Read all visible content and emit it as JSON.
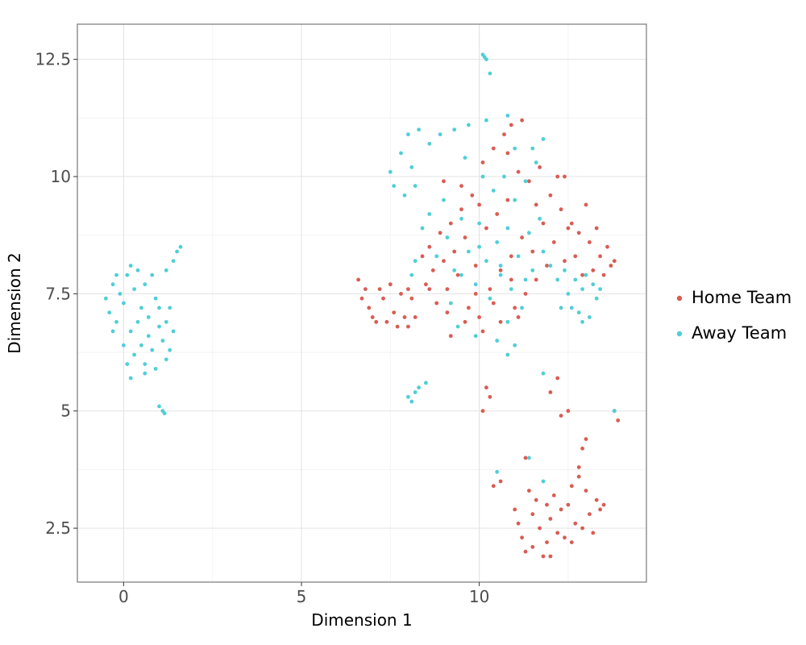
{
  "chart_data": {
    "type": "scatter",
    "xlabel": "Dimension 1",
    "ylabel": "Dimension 2",
    "xlim": [
      -1.3,
      14.7
    ],
    "ylim": [
      1.35,
      13.25
    ],
    "x_ticks": [
      0,
      5,
      10
    ],
    "x_tick_labels": [
      "0",
      "5",
      "10"
    ],
    "y_ticks": [
      2.5,
      5,
      7.5,
      10,
      12.5
    ],
    "y_tick_labels": [
      "2.5",
      "5",
      "7.5",
      "10",
      "12.5"
    ],
    "grid": true,
    "legend_position": "right",
    "series": [
      {
        "name": "Home Team",
        "color": "#d95c53",
        "points": [
          [
            6.6,
            7.8
          ],
          [
            6.8,
            7.6
          ],
          [
            6.9,
            7.2
          ],
          [
            7.0,
            7.0
          ],
          [
            7.1,
            6.9
          ],
          [
            7.3,
            7.4
          ],
          [
            7.5,
            7.7
          ],
          [
            7.6,
            7.1
          ],
          [
            7.7,
            6.8
          ],
          [
            7.9,
            7.0
          ],
          [
            8.0,
            6.8
          ],
          [
            8.1,
            7.4
          ],
          [
            8.2,
            7.0
          ],
          [
            6.7,
            7.4
          ],
          [
            7.2,
            7.6
          ],
          [
            7.8,
            7.5
          ],
          [
            7.4,
            6.9
          ],
          [
            8.0,
            7.6
          ],
          [
            8.4,
            8.3
          ],
          [
            8.5,
            7.7
          ],
          [
            8.6,
            8.5
          ],
          [
            8.7,
            8.0
          ],
          [
            8.8,
            7.3
          ],
          [
            8.9,
            8.8
          ],
          [
            9.0,
            8.2
          ],
          [
            9.1,
            7.6
          ],
          [
            9.2,
            9.0
          ],
          [
            9.3,
            8.4
          ],
          [
            9.4,
            7.9
          ],
          [
            9.5,
            9.3
          ],
          [
            9.6,
            8.7
          ],
          [
            9.7,
            7.2
          ],
          [
            9.8,
            9.6
          ],
          [
            9.9,
            8.1
          ],
          [
            10.0,
            7.0
          ],
          [
            10.1,
            10.3
          ],
          [
            10.2,
            8.9
          ],
          [
            10.3,
            7.6
          ],
          [
            10.4,
            10.6
          ],
          [
            10.5,
            9.2
          ],
          [
            10.6,
            8.0
          ],
          [
            10.7,
            10.9
          ],
          [
            10.8,
            9.5
          ],
          [
            10.9,
            8.3
          ],
          [
            11.0,
            7.2
          ],
          [
            11.1,
            10.1
          ],
          [
            11.2,
            8.7
          ],
          [
            11.3,
            7.5
          ],
          [
            11.4,
            9.9
          ],
          [
            11.5,
            8.4
          ],
          [
            11.6,
            7.8
          ],
          [
            11.7,
            10.2
          ],
          [
            11.8,
            9.0
          ],
          [
            11.9,
            8.1
          ],
          [
            12.0,
            9.6
          ],
          [
            12.1,
            8.6
          ],
          [
            12.2,
            10.0
          ],
          [
            12.3,
            9.3
          ],
          [
            12.4,
            8.2
          ],
          [
            12.5,
            8.9
          ],
          [
            12.6,
            9.0
          ],
          [
            12.7,
            8.3
          ],
          [
            12.8,
            8.8
          ],
          [
            12.9,
            7.9
          ],
          [
            13.0,
            9.4
          ],
          [
            13.1,
            8.6
          ],
          [
            13.2,
            8.0
          ],
          [
            13.3,
            8.9
          ],
          [
            13.4,
            8.3
          ],
          [
            13.5,
            7.9
          ],
          [
            13.6,
            8.5
          ],
          [
            13.7,
            8.1
          ],
          [
            13.8,
            8.2
          ],
          [
            9.2,
            6.6
          ],
          [
            9.6,
            6.9
          ],
          [
            10.1,
            6.7
          ],
          [
            10.6,
            6.9
          ],
          [
            11.1,
            7.0
          ],
          [
            10.9,
            11.1
          ],
          [
            11.2,
            11.2
          ],
          [
            9.0,
            9.9
          ],
          [
            9.5,
            9.8
          ],
          [
            10.0,
            9.4
          ],
          [
            10.8,
            10.5
          ],
          [
            11.6,
            9.4
          ],
          [
            12.4,
            10.0
          ],
          [
            9.9,
            7.5
          ],
          [
            10.4,
            7.3
          ],
          [
            10.9,
            7.8
          ],
          [
            8.6,
            7.6
          ],
          [
            9.1,
            7.1
          ],
          [
            10.2,
            5.5
          ],
          [
            10.1,
            5.0
          ],
          [
            10.3,
            5.3
          ],
          [
            12.2,
            5.7
          ],
          [
            12.3,
            4.9
          ],
          [
            12.5,
            5.0
          ],
          [
            12.0,
            5.4
          ],
          [
            13.8,
            5.0
          ],
          [
            13.9,
            4.8
          ],
          [
            11.3,
            4.0
          ],
          [
            10.4,
            3.4
          ],
          [
            10.6,
            3.5
          ],
          [
            11.0,
            2.9
          ],
          [
            11.1,
            2.6
          ],
          [
            11.2,
            2.3
          ],
          [
            11.3,
            2.0
          ],
          [
            11.5,
            2.8
          ],
          [
            11.6,
            3.1
          ],
          [
            11.7,
            2.5
          ],
          [
            11.8,
            1.9
          ],
          [
            11.9,
            2.2
          ],
          [
            12.0,
            2.7
          ],
          [
            12.1,
            3.2
          ],
          [
            12.2,
            2.4
          ],
          [
            12.3,
            2.9
          ],
          [
            12.4,
            2.3
          ],
          [
            12.5,
            3.0
          ],
          [
            12.6,
            3.4
          ],
          [
            12.7,
            2.6
          ],
          [
            12.8,
            3.8
          ],
          [
            12.9,
            2.5
          ],
          [
            13.0,
            3.3
          ],
          [
            13.1,
            2.8
          ],
          [
            13.2,
            2.4
          ],
          [
            13.3,
            3.1
          ],
          [
            13.4,
            2.9
          ],
          [
            12.9,
            4.2
          ],
          [
            13.0,
            4.4
          ],
          [
            11.4,
            3.3
          ],
          [
            11.9,
            3.0
          ],
          [
            12.6,
            2.2
          ],
          [
            12.8,
            3.6
          ],
          [
            13.5,
            3.0
          ],
          [
            11.5,
            2.1
          ],
          [
            12.0,
            1.9
          ]
        ]
      },
      {
        "name": "Away Team",
        "color": "#4fcfd6",
        "points": [
          [
            -0.5,
            7.4
          ],
          [
            -0.4,
            7.1
          ],
          [
            -0.3,
            7.7
          ],
          [
            -0.2,
            6.9
          ],
          [
            -0.1,
            7.5
          ],
          [
            0.0,
            7.3
          ],
          [
            0.0,
            6.4
          ],
          [
            0.1,
            7.9
          ],
          [
            0.1,
            6.0
          ],
          [
            0.2,
            6.7
          ],
          [
            0.2,
            5.7
          ],
          [
            0.3,
            7.6
          ],
          [
            0.3,
            6.2
          ],
          [
            0.4,
            8.0
          ],
          [
            0.4,
            6.9
          ],
          [
            0.5,
            7.2
          ],
          [
            0.5,
            6.4
          ],
          [
            0.6,
            7.7
          ],
          [
            0.6,
            6.0
          ],
          [
            0.7,
            7.0
          ],
          [
            0.7,
            6.6
          ],
          [
            0.8,
            7.9
          ],
          [
            0.8,
            6.3
          ],
          [
            0.9,
            7.4
          ],
          [
            0.9,
            5.9
          ],
          [
            1.0,
            6.8
          ],
          [
            1.0,
            7.2
          ],
          [
            1.1,
            6.5
          ],
          [
            1.2,
            6.9
          ],
          [
            1.3,
            6.3
          ],
          [
            1.4,
            6.7
          ],
          [
            1.3,
            7.2
          ],
          [
            1.2,
            8.0
          ],
          [
            1.4,
            8.2
          ],
          [
            1.5,
            8.4
          ],
          [
            1.6,
            8.5
          ],
          [
            1.0,
            5.1
          ],
          [
            1.1,
            5.0
          ],
          [
            1.15,
            4.95
          ],
          [
            -0.2,
            7.9
          ],
          [
            0.2,
            8.1
          ],
          [
            -0.3,
            6.7
          ],
          [
            0.6,
            5.8
          ],
          [
            1.2,
            6.1
          ],
          [
            8.0,
            5.3
          ],
          [
            8.1,
            5.2
          ],
          [
            8.2,
            5.4
          ],
          [
            8.5,
            5.6
          ],
          [
            8.3,
            5.5
          ],
          [
            10.1,
            12.6
          ],
          [
            10.15,
            12.55
          ],
          [
            10.2,
            12.5
          ],
          [
            10.3,
            12.2
          ],
          [
            7.5,
            10.1
          ],
          [
            7.6,
            9.8
          ],
          [
            7.8,
            10.5
          ],
          [
            7.9,
            9.6
          ],
          [
            8.0,
            10.9
          ],
          [
            8.1,
            10.2
          ],
          [
            8.3,
            11.0
          ],
          [
            8.2,
            9.8
          ],
          [
            8.6,
            10.7
          ],
          [
            8.9,
            10.9
          ],
          [
            9.3,
            11.0
          ],
          [
            9.7,
            11.1
          ],
          [
            10.2,
            11.2
          ],
          [
            10.8,
            11.3
          ],
          [
            11.5,
            10.6
          ],
          [
            11.8,
            10.8
          ],
          [
            8.4,
            8.9
          ],
          [
            8.6,
            9.2
          ],
          [
            8.8,
            8.3
          ],
          [
            9.0,
            9.5
          ],
          [
            9.1,
            8.7
          ],
          [
            9.3,
            8.0
          ],
          [
            9.5,
            9.1
          ],
          [
            9.7,
            8.4
          ],
          [
            9.9,
            7.7
          ],
          [
            10.0,
            9.0
          ],
          [
            10.2,
            8.2
          ],
          [
            10.3,
            7.4
          ],
          [
            10.4,
            9.7
          ],
          [
            10.5,
            8.6
          ],
          [
            10.6,
            7.9
          ],
          [
            10.7,
            10.0
          ],
          [
            10.8,
            8.9
          ],
          [
            10.9,
            7.6
          ],
          [
            11.0,
            9.5
          ],
          [
            11.1,
            8.3
          ],
          [
            11.2,
            7.2
          ],
          [
            11.3,
            9.9
          ],
          [
            11.4,
            8.8
          ],
          [
            11.5,
            8.0
          ],
          [
            11.6,
            10.3
          ],
          [
            11.7,
            9.1
          ],
          [
            11.8,
            8.4
          ],
          [
            12.0,
            8.1
          ],
          [
            12.2,
            7.8
          ],
          [
            12.4,
            8.0
          ],
          [
            12.5,
            7.5
          ],
          [
            12.6,
            7.2
          ],
          [
            12.7,
            7.8
          ],
          [
            12.8,
            7.1
          ],
          [
            12.9,
            7.6
          ],
          [
            13.0,
            7.9
          ],
          [
            13.1,
            7.0
          ],
          [
            13.2,
            7.7
          ],
          [
            13.3,
            7.4
          ],
          [
            13.4,
            7.6
          ],
          [
            9.4,
            6.8
          ],
          [
            9.9,
            6.6
          ],
          [
            10.5,
            6.5
          ],
          [
            10.8,
            6.2
          ],
          [
            11.0,
            6.4
          ],
          [
            8.2,
            8.2
          ],
          [
            8.1,
            7.9
          ],
          [
            9.6,
            10.4
          ],
          [
            10.1,
            10.0
          ],
          [
            11.0,
            10.6
          ],
          [
            12.3,
            7.2
          ],
          [
            12.9,
            6.9
          ],
          [
            9.2,
            7.3
          ],
          [
            10.0,
            8.5
          ],
          [
            10.6,
            8.1
          ],
          [
            11.3,
            7.8
          ],
          [
            9.5,
            7.9
          ],
          [
            10.8,
            6.9
          ],
          [
            10.5,
            3.7
          ],
          [
            11.4,
            4.0
          ],
          [
            11.8,
            3.5
          ],
          [
            13.8,
            5.0
          ],
          [
            11.8,
            5.8
          ]
        ]
      }
    ]
  }
}
